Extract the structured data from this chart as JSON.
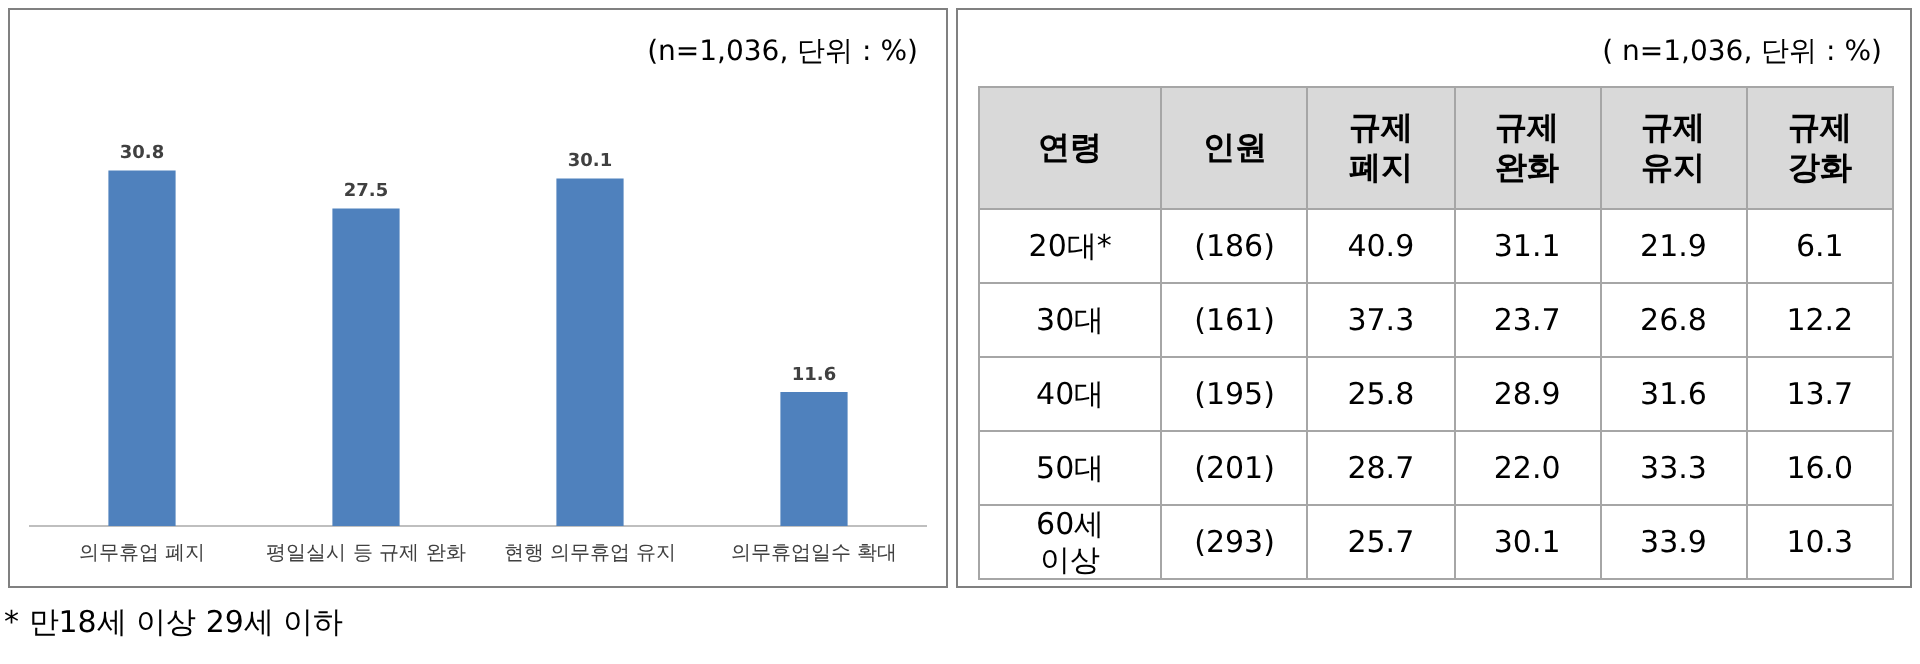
{
  "chart_data": [
    {
      "type": "bar",
      "subtitle": "(n=1,036, 단위 : %)",
      "categories": [
        "의무휴업 폐지",
        "평일실시 등 규제 완화",
        "현행 의무휴업 유지",
        "의무휴업일수 확대"
      ],
      "values": [
        30.8,
        27.5,
        30.1,
        11.6
      ],
      "color": "#4f81bd",
      "data_labels": true,
      "grid": false,
      "legend": false
    },
    {
      "type": "heatmap",
      "subtitle": "( n=1,036, 단위 : %)",
      "ylabel": "연령",
      "categories": [
        "인원",
        "규제 폐지",
        "규제 완화",
        "규제 유지",
        "규제 강화"
      ],
      "y_categories": [
        "20대*",
        "30대",
        "40대",
        "50대",
        "60세 이상"
      ],
      "cells": [
        [
          186,
          40.9,
          31.1,
          21.9,
          6.1
        ],
        [
          161,
          37.3,
          23.7,
          26.8,
          12.2
        ],
        [
          195,
          25.8,
          28.9,
          31.6,
          13.7
        ],
        [
          201,
          28.7,
          22.0,
          33.3,
          16.0
        ],
        [
          293,
          25.7,
          30.1,
          33.9,
          10.3
        ]
      ],
      "data_labels": true,
      "cell_labels": [
        [
          "(186)",
          "40.9",
          "31.1",
          "21.9",
          "6.1"
        ],
        [
          "(161)",
          "37.3",
          "23.7",
          "26.8",
          "12.2"
        ],
        [
          "(195)",
          "25.8",
          "28.9",
          "31.6",
          "13.7"
        ],
        [
          "(201)",
          "28.7",
          "22.0",
          "33.3",
          "16.0"
        ],
        [
          "(293)",
          "25.7",
          "30.1",
          "33.9",
          "10.3"
        ]
      ],
      "annotations": [
        "* 만18세 이상 29세 이하"
      ]
    }
  ]
}
